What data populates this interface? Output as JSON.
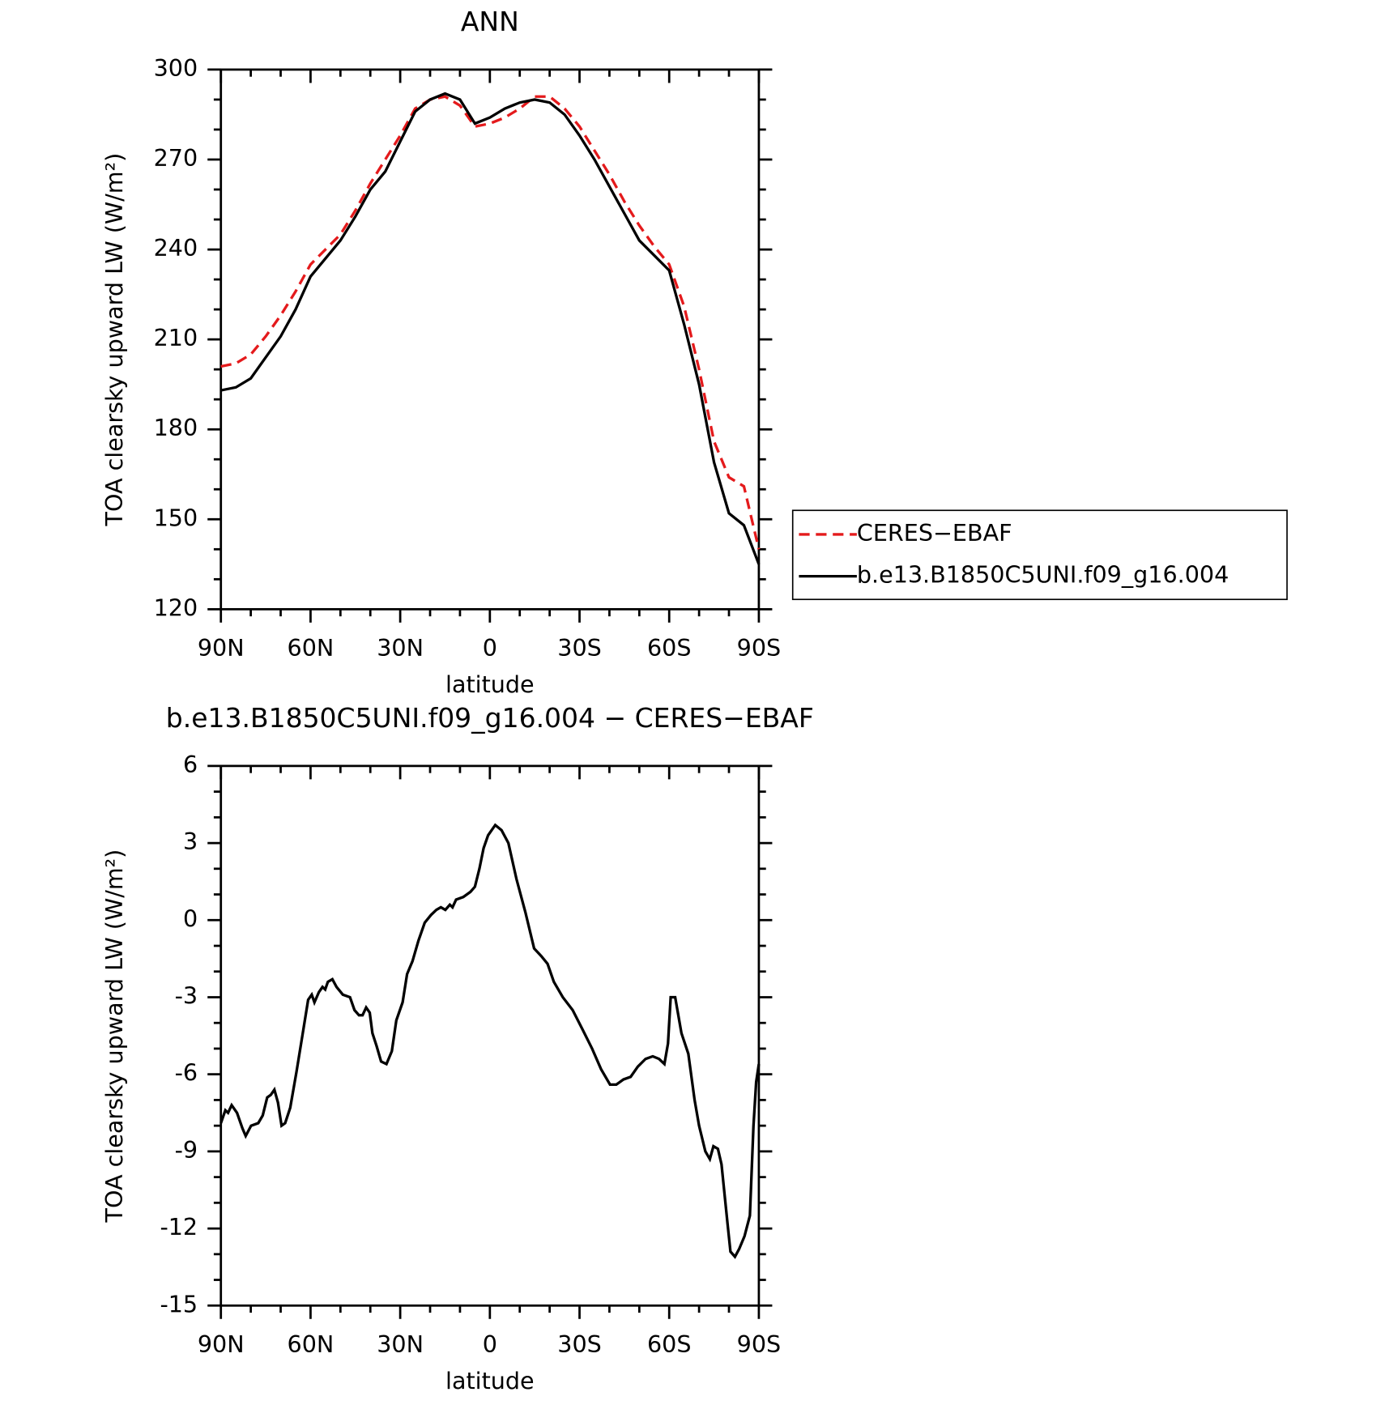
{
  "chart_data": [
    {
      "type": "line",
      "title": "ANN",
      "xlabel": "latitude",
      "ylabel": "TOA clearsky upward LW (W/m²)",
      "xlim": [
        90,
        -90
      ],
      "xticks": [
        {
          "value": 90,
          "label": "90N"
        },
        {
          "value": 60,
          "label": "60N"
        },
        {
          "value": 30,
          "label": "30N"
        },
        0,
        {
          "value": -30,
          "label": "30S"
        },
        {
          "value": -60,
          "label": "60S"
        },
        {
          "value": -90,
          "label": "90S"
        }
      ],
      "ylim": [
        120,
        300
      ],
      "yticks": [
        120,
        150,
        180,
        210,
        240,
        270,
        300
      ],
      "legend": "right",
      "x": [
        90,
        85,
        80,
        75,
        70,
        65,
        60,
        55,
        50,
        45,
        40,
        35,
        30,
        25,
        20,
        15,
        10,
        5,
        0,
        -5,
        -10,
        -15,
        -20,
        -25,
        -30,
        -35,
        -40,
        -45,
        -50,
        -55,
        -60,
        -65,
        -70,
        -75,
        -80,
        -85,
        -90
      ],
      "series": [
        {
          "name": "CERES−EBAF",
          "color": "#e41a1c",
          "line_style": "dashed",
          "values": [
            201,
            202,
            205,
            211,
            218,
            226,
            235,
            240,
            245,
            253,
            262,
            270,
            278,
            287,
            290,
            291,
            288,
            281,
            282,
            284,
            287,
            291,
            291,
            287,
            281,
            273,
            265,
            256,
            248,
            241,
            235,
            221,
            200,
            176,
            164,
            161,
            140
          ]
        },
        {
          "name": "b.e13.B1850C5UNI.f09_g16.004",
          "color": "#000000",
          "line_style": "solid",
          "values": [
            193,
            194,
            197,
            204,
            211,
            220,
            231,
            237,
            243,
            251,
            260,
            266,
            276,
            286,
            290,
            292,
            290,
            282,
            284,
            287,
            289,
            290,
            289,
            285,
            278,
            270,
            261,
            252,
            243,
            238,
            233,
            215,
            195,
            169,
            152,
            148,
            135
          ]
        }
      ]
    },
    {
      "type": "line",
      "title": "b.e13.B1850C5UNI.f09_g16.004 − CERES−EBAF",
      "xlabel": "latitude",
      "ylabel": "TOA clearsky upward LW (W/m²)",
      "xlim": [
        90,
        -90
      ],
      "xticks": [
        {
          "value": 90,
          "label": "90N"
        },
        {
          "value": 60,
          "label": "60N"
        },
        {
          "value": 30,
          "label": "30N"
        },
        0,
        {
          "value": -30,
          "label": "30S"
        },
        {
          "value": -60,
          "label": "60S"
        },
        {
          "value": -90,
          "label": "90S"
        }
      ],
      "ylim": [
        -15,
        6
      ],
      "yticks": [
        -15,
        -12,
        -9,
        -6,
        -3,
        0,
        3,
        6
      ],
      "x": [
        90,
        88.5,
        87.6,
        86.4,
        84.6,
        82.8,
        81.7,
        79.9,
        77.5,
        76.0,
        74.5,
        73.3,
        72.1,
        70.9,
        69.7,
        68.5,
        66.8,
        64.7,
        62.6,
        60.8,
        59.6,
        58.7,
        57.2,
        56.0,
        55.1,
        54.2,
        52.7,
        51.3,
        49.2,
        46.8,
        45.3,
        43.8,
        42.6,
        41.4,
        40.2,
        39.3,
        37.9,
        36.4,
        34.6,
        32.8,
        31.3,
        29.2,
        27.7,
        25.9,
        23.9,
        21.8,
        19.7,
        17.9,
        16.4,
        14.9,
        13.4,
        12.5,
        11.3,
        8.9,
        6.5,
        5.0,
        3.5,
        2.1,
        0.6,
        -1.8,
        -3.9,
        -6.2,
        -8.9,
        -11.9,
        -14.8,
        -17.2,
        -19.3,
        -21.4,
        -24.4,
        -27.7,
        -31.2,
        -34.2,
        -37.2,
        -40.2,
        -42.3,
        -44.7,
        -47.1,
        -49.5,
        -52.1,
        -54.5,
        -56.6,
        -58.4,
        -59.6,
        -60.5,
        -62.0,
        -64.1,
        -66.4,
        -68.5,
        -70.0,
        -72.1,
        -73.6,
        -74.8,
        -76.3,
        -77.5,
        -79.6,
        -80.5,
        -82.0,
        -83.4,
        -85.2,
        -87.0,
        -88.2,
        -89.1,
        -90
      ],
      "series": [
        {
          "name": "b.e13.B1850C5UNI.f09_g16.004 − CERES−EBAF",
          "color": "#000000",
          "line_style": "solid",
          "values": [
            -7.9,
            -7.4,
            -7.5,
            -7.2,
            -7.5,
            -8.1,
            -8.4,
            -8.0,
            -7.9,
            -7.6,
            -6.9,
            -6.8,
            -6.6,
            -7.1,
            -8.0,
            -7.9,
            -7.3,
            -5.9,
            -4.4,
            -3.1,
            -2.9,
            -3.2,
            -2.8,
            -2.6,
            -2.7,
            -2.4,
            -2.3,
            -2.6,
            -2.9,
            -3.0,
            -3.5,
            -3.7,
            -3.7,
            -3.4,
            -3.6,
            -4.4,
            -4.9,
            -5.5,
            -5.6,
            -5.1,
            -3.9,
            -3.2,
            -2.1,
            -1.6,
            -0.8,
            -0.1,
            0.2,
            0.4,
            0.5,
            0.4,
            0.6,
            0.5,
            0.8,
            0.9,
            1.1,
            1.3,
            2.0,
            2.8,
            3.3,
            3.7,
            3.5,
            3.0,
            1.6,
            0.3,
            -1.1,
            -1.4,
            -1.7,
            -2.4,
            -3.0,
            -3.5,
            -4.3,
            -5.0,
            -5.8,
            -6.4,
            -6.4,
            -6.2,
            -6.1,
            -5.7,
            -5.4,
            -5.3,
            -5.4,
            -5.6,
            -4.8,
            -3.0,
            -3.0,
            -4.4,
            -5.2,
            -7.0,
            -8.0,
            -9.0,
            -9.3,
            -8.8,
            -8.9,
            -9.5,
            -11.9,
            -12.9,
            -13.1,
            -12.8,
            -12.3,
            -11.5,
            -8.0,
            -6.3,
            -5.6
          ]
        }
      ]
    }
  ]
}
